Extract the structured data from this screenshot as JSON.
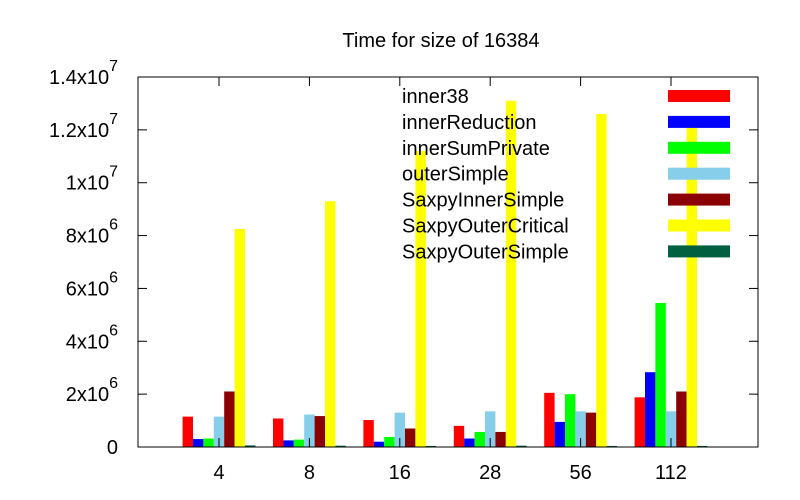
{
  "chart_data": {
    "type": "bar",
    "title": "Time for size of 16384",
    "xlabel": "",
    "ylabel": "",
    "categories": [
      "4",
      "8",
      "16",
      "28",
      "56",
      "112"
    ],
    "ylim": [
      0,
      14000000
    ],
    "yticks": [
      {
        "value": 0,
        "mantissa": "0",
        "exp": ""
      },
      {
        "value": 2000000,
        "mantissa": "2x10",
        "exp": "6"
      },
      {
        "value": 4000000,
        "mantissa": "4x10",
        "exp": "6"
      },
      {
        "value": 6000000,
        "mantissa": "6x10",
        "exp": "6"
      },
      {
        "value": 8000000,
        "mantissa": "8x10",
        "exp": "6"
      },
      {
        "value": 10000000,
        "mantissa": "1x10",
        "exp": "7"
      },
      {
        "value": 12000000,
        "mantissa": "1.2x10",
        "exp": "7"
      },
      {
        "value": 14000000,
        "mantissa": "1.4x10",
        "exp": "7"
      }
    ],
    "grid": false,
    "legend_position": "top-right",
    "series": [
      {
        "name": "inner38",
        "color": "#ff0000",
        "values": [
          1150000,
          1080000,
          1020000,
          800000,
          2050000,
          1880000
        ]
      },
      {
        "name": "innerReduction",
        "color": "#0000ff",
        "values": [
          300000,
          250000,
          200000,
          320000,
          950000,
          2830000
        ]
      },
      {
        "name": "innerSumPrivate",
        "color": "#00ff00",
        "values": [
          320000,
          280000,
          380000,
          570000,
          2000000,
          5450000
        ]
      },
      {
        "name": "outerSimple",
        "color": "#87ceeb",
        "values": [
          1150000,
          1230000,
          1300000,
          1350000,
          1350000,
          1350000
        ]
      },
      {
        "name": "SaxpyInnerSimple",
        "color": "#8b0000",
        "values": [
          2100000,
          1170000,
          700000,
          570000,
          1300000,
          2100000
        ]
      },
      {
        "name": "SaxpyOuterCritical",
        "color": "#ffff00",
        "values": [
          8250000,
          9300000,
          11200000,
          13100000,
          12600000,
          12400000
        ]
      },
      {
        "name": "SaxpyOuterSimple",
        "color": "#006040",
        "values": [
          60000,
          50000,
          40000,
          50000,
          40000,
          40000
        ]
      }
    ]
  }
}
